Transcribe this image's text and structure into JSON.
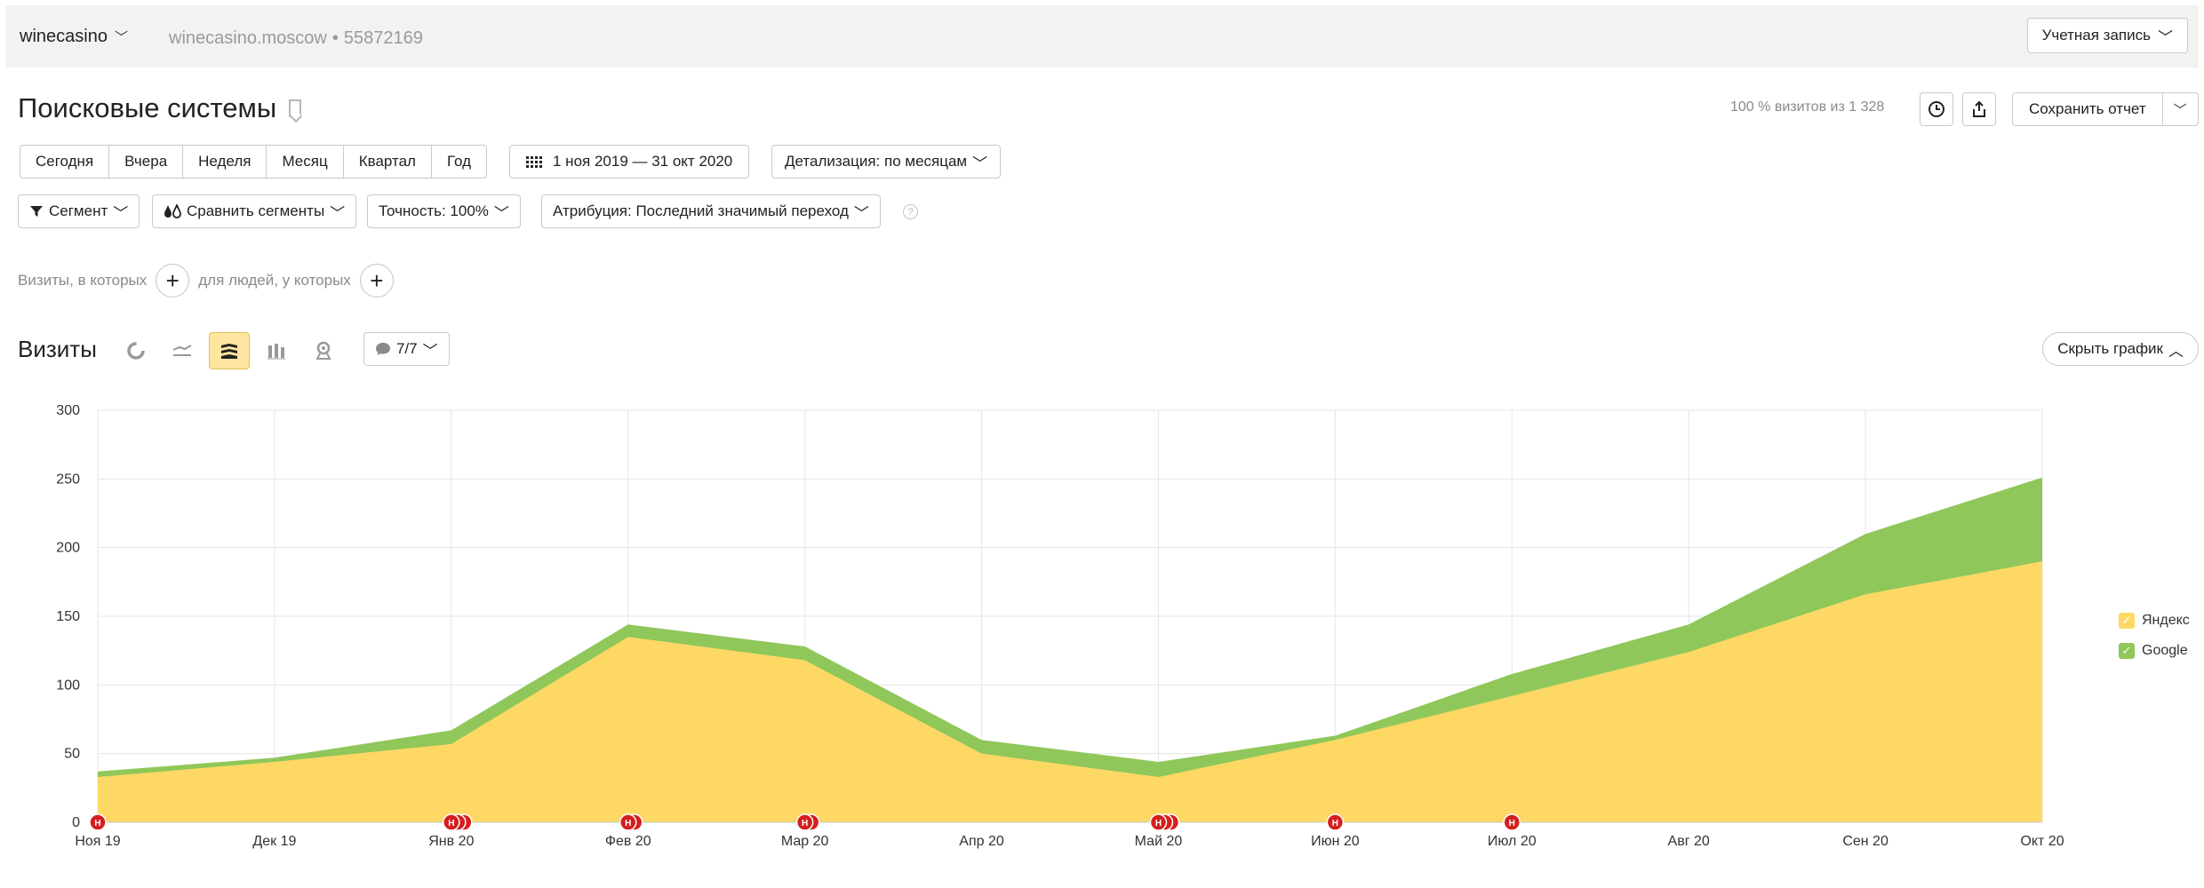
{
  "header": {
    "counter_name": "winecasino",
    "site": "winecasino.moscow",
    "counter_id": "55872169",
    "account_label": "Учетная запись"
  },
  "report": {
    "title": "Поисковые системы",
    "visits_share": "100 % визитов из 1 328",
    "save_label": "Сохранить отчет"
  },
  "periods": [
    "Сегодня",
    "Вчера",
    "Неделя",
    "Месяц",
    "Квартал",
    "Год"
  ],
  "date_range": "1 ноя 2019 — 31 окт 2020",
  "detail_label": "Детализация: по месяцам",
  "filters": {
    "segment": "Сегмент",
    "compare": "Сравнить сегменты",
    "accuracy": "Точность: 100%",
    "attribution": "Атрибуция: Последний значимый переход"
  },
  "conditions": {
    "visits_where": "Визиты, в которых",
    "people_where": "для людей, у которых"
  },
  "chart_section": {
    "title": "Визиты",
    "notes_count": "7/7",
    "hide_label": "Скрыть график"
  },
  "colors": {
    "yandex": "#fdd865",
    "google": "#8fc75a",
    "grid": "#e6e6e6",
    "marker": "#d41f1f",
    "active_tab": "#ffe5a0"
  },
  "chart_data": {
    "type": "area",
    "stacked": true,
    "categories": [
      "Ноя 19",
      "Дек 19",
      "Янв 20",
      "Фев 20",
      "Мар 20",
      "Апр 20",
      "Май 20",
      "Июн 20",
      "Июл 20",
      "Авг 20",
      "Сен 20",
      "Окт 20"
    ],
    "ylim": [
      0,
      300
    ],
    "yticks": [
      0,
      50,
      100,
      150,
      200,
      250,
      300
    ],
    "grid": true,
    "legend_position": "right",
    "series": [
      {
        "name": "Яндекс",
        "values": [
          33,
          44,
          57,
          135,
          118,
          50,
          33,
          60,
          92,
          124,
          166,
          190
        ]
      },
      {
        "name": "Google",
        "values": [
          4,
          3,
          10,
          9,
          10,
          10,
          11,
          3,
          16,
          20,
          44,
          61
        ]
      }
    ],
    "markers": [
      {
        "category": "Ноя 19",
        "count": 1
      },
      {
        "category": "Янв 20",
        "count": 3
      },
      {
        "category": "Фев 20",
        "count": 2
      },
      {
        "category": "Мар 20",
        "count": 2
      },
      {
        "category": "Май 20",
        "count": 3
      },
      {
        "category": "Июн 20",
        "count": 1
      },
      {
        "category": "Июл 20",
        "count": 1
      }
    ],
    "marker_label": "Н"
  }
}
